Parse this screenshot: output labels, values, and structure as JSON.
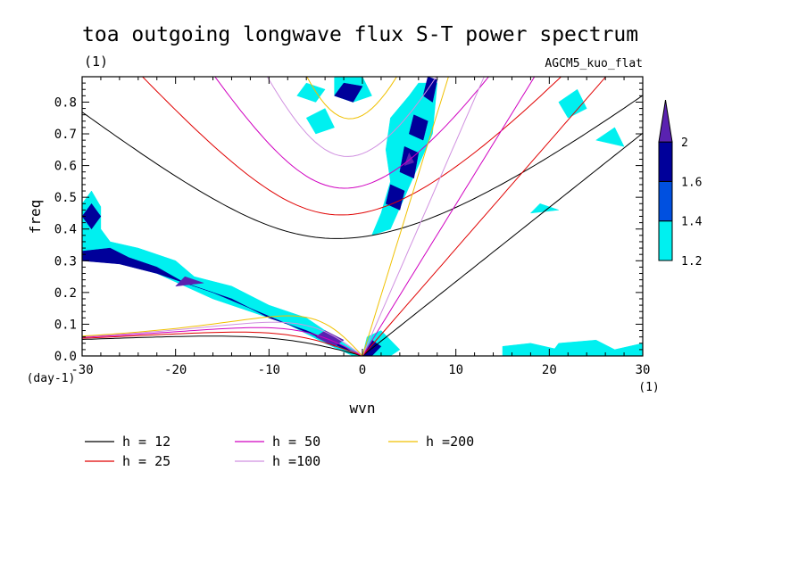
{
  "chart_data": {
    "type": "heatmap",
    "title": "toa outgoing longwave flux S-T power spectrum",
    "units_label": "(1)",
    "model_label": "AGCM5_kuo_flat",
    "xlabel": "wvn",
    "ylabel": "freq",
    "x_units": "(1)",
    "y_units": "(day-1)",
    "xlim": [
      -30,
      30
    ],
    "ylim": [
      0.0,
      0.88
    ],
    "xticks": [
      -30,
      -20,
      -10,
      0,
      10,
      20,
      30
    ],
    "xtick_labels": [
      "-30",
      "-20",
      "-10",
      "0",
      "10",
      "20",
      "30"
    ],
    "yticks": [
      0.0,
      0.1,
      0.2,
      0.3,
      0.4,
      0.5,
      0.6,
      0.7,
      0.8
    ],
    "ytick_labels": [
      "0.0",
      "0.1",
      "0.2",
      "0.3",
      "0.4",
      "0.5",
      "0.6",
      "0.7",
      "0.8"
    ],
    "colorbar": {
      "levels": [
        1.2,
        1.4,
        1.6,
        2
      ],
      "labels": [
        "1.2",
        "1.4",
        "1.6",
        "2"
      ],
      "colors": [
        "#00f0f0",
        "#0050e0",
        "#00009a",
        "#5a22b0"
      ]
    },
    "dispersion_curves": [
      {
        "name": "h = 12",
        "h": 12,
        "color": "#000000"
      },
      {
        "name": "h = 25",
        "h": 25,
        "color": "#e00000"
      },
      {
        "name": "h = 50",
        "h": 50,
        "color": "#d000c0"
      },
      {
        "name": "h =100",
        "h": 100,
        "color": "#d090e0"
      },
      {
        "name": "h =200",
        "h": 200,
        "color": "#f0c000"
      }
    ],
    "shaded_regions": [
      {
        "level": 1.2,
        "points": [
          [
            -30,
            0.08,
            -30,
            0.48,
            -29,
            0.52,
            -28,
            0.47,
            -28,
            0.4,
            -27,
            0.36,
            -24,
            0.34,
            -20,
            0.3,
            -18,
            0.25,
            -14,
            0.22,
            -10,
            0.16,
            -6,
            0.12,
            -3,
            0.06,
            -1,
            0.02,
            0,
            0,
            -1,
            0,
            -4,
            0.04,
            -8,
            0.1,
            -12,
            0.14,
            -16,
            0.18,
            -22,
            0.26,
            -27,
            0.3,
            -30,
            0.3
          ]
        ]
      },
      {
        "level": 1.2,
        "points": [
          [
            0,
            0,
            0.5,
            0.06,
            2,
            0.08,
            4,
            0.02,
            3,
            0
          ]
        ]
      },
      {
        "level": 1.2,
        "points": [
          [
            1,
            0.38,
            2,
            0.45,
            3,
            0.55,
            2.5,
            0.65,
            3,
            0.75,
            5,
            0.82,
            6,
            0.86,
            8,
            0.86,
            7.5,
            0.7,
            6,
            0.6,
            4.5,
            0.5,
            3,
            0.4
          ]
        ]
      },
      {
        "level": 1.2,
        "points": [
          [
            -3,
            0.88,
            -3,
            0.82,
            -1,
            0.8,
            1,
            0.82,
            0,
            0.88
          ]
        ]
      },
      {
        "level": 1.2,
        "points": [
          [
            -6,
            0.75,
            -5,
            0.7,
            -3,
            0.72,
            -4,
            0.78
          ]
        ]
      },
      {
        "level": 1.2,
        "points": [
          [
            -7,
            0.82,
            -5,
            0.8,
            -4,
            0.84,
            -6,
            0.86
          ]
        ]
      },
      {
        "level": 1.2,
        "points": [
          [
            15,
            0.0,
            15,
            0.03,
            18,
            0.04,
            21,
            0.02,
            20,
            0.0
          ]
        ]
      },
      {
        "level": 1.2,
        "points": [
          [
            20,
            0.0,
            21,
            0.04,
            25,
            0.05,
            27,
            0.02,
            30,
            0.04,
            30,
            0.0
          ]
        ]
      },
      {
        "level": 1.2,
        "points": [
          [
            21,
            0.8,
            23,
            0.84,
            24,
            0.78,
            22,
            0.75
          ]
        ]
      },
      {
        "level": 1.2,
        "points": [
          [
            25,
            0.68,
            27,
            0.72,
            28,
            0.66
          ]
        ]
      },
      {
        "level": 1.2,
        "points": [
          [
            18,
            0.45,
            19,
            0.48,
            21,
            0.46
          ]
        ]
      },
      {
        "level": 1.6,
        "points": [
          [
            -30,
            0.33,
            -27,
            0.34,
            -25,
            0.31,
            -22,
            0.28,
            -19,
            0.23,
            -16,
            0.2,
            -12,
            0.15,
            -8,
            0.1,
            -4,
            0.05,
            -1,
            0.01,
            -2,
            0.03,
            -6,
            0.08,
            -10,
            0.12,
            -14,
            0.18,
            -18,
            0.22,
            -22,
            0.26,
            -26,
            0.29,
            -30,
            0.3
          ]
        ]
      },
      {
        "level": 1.6,
        "points": [
          [
            -30,
            0.44,
            -29,
            0.48,
            -28,
            0.44,
            -29,
            0.4
          ]
        ]
      },
      {
        "level": 1.6,
        "points": [
          [
            0,
            0,
            1,
            0.05,
            2,
            0.03,
            1,
            0
          ]
        ]
      },
      {
        "level": 1.6,
        "points": [
          [
            2.5,
            0.48,
            3,
            0.54,
            4.5,
            0.52,
            4,
            0.46
          ]
        ]
      },
      {
        "level": 1.6,
        "points": [
          [
            4,
            0.58,
            4.5,
            0.66,
            6,
            0.64,
            5.5,
            0.56
          ]
        ]
      },
      {
        "level": 1.6,
        "points": [
          [
            5,
            0.7,
            5.5,
            0.76,
            7,
            0.74,
            6.5,
            0.68
          ]
        ]
      },
      {
        "level": 1.6,
        "points": [
          [
            6.5,
            0.82,
            7,
            0.88,
            8,
            0.87,
            7.5,
            0.8
          ]
        ]
      },
      {
        "level": 1.6,
        "points": [
          [
            -3,
            0.82,
            -2,
            0.86,
            0,
            0.85,
            -1,
            0.8
          ]
        ]
      },
      {
        "level": 2,
        "points": [
          [
            -20,
            0.22,
            -19,
            0.25,
            -17,
            0.23
          ]
        ]
      },
      {
        "level": 2,
        "points": [
          [
            -5,
            0.06,
            -4,
            0.08,
            -2,
            0.05,
            -3,
            0.03
          ]
        ]
      },
      {
        "level": 2,
        "points": [
          [
            4.5,
            0.6,
            5,
            0.64,
            5.5,
            0.61
          ]
        ]
      }
    ]
  }
}
